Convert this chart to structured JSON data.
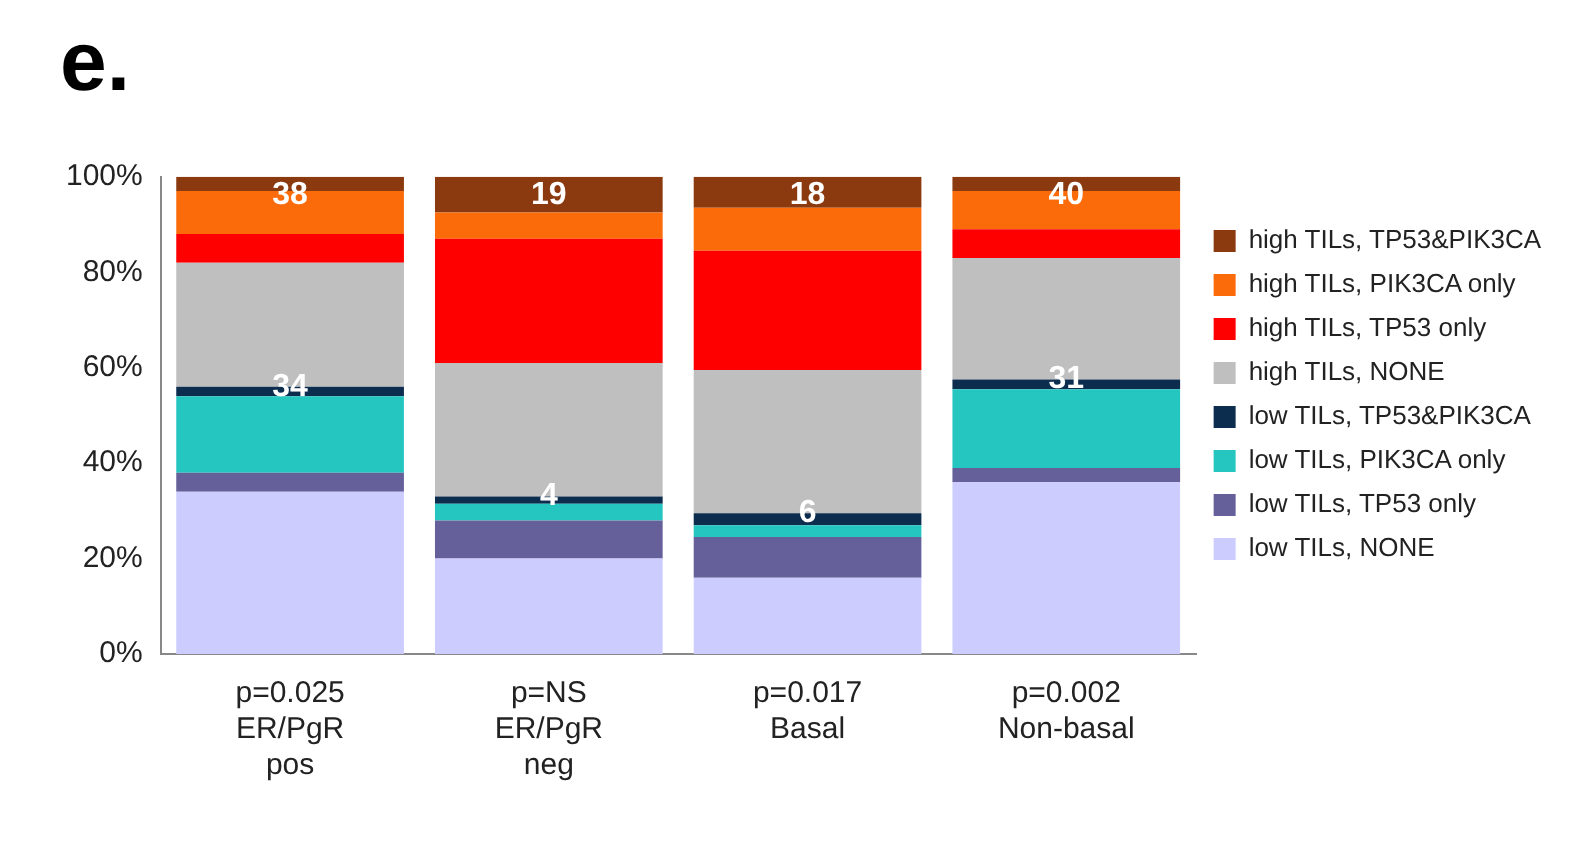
{
  "chart_data": {
    "type": "bar",
    "title": "e.",
    "stacked": true,
    "legend": "right",
    "grid": false,
    "categories": [
      "p=0.025\nER/PgR\npos",
      "p=NS\nER/PgR\nneg",
      "p=0.017\nBasal",
      "p=0.002\nNon-basal"
    ],
    "ylim": [
      0,
      100
    ],
    "yticks": [
      {
        "value": 0,
        "label": "0%"
      },
      {
        "value": 20,
        "label": "20%"
      },
      {
        "value": 40,
        "label": "40%"
      },
      {
        "value": 60,
        "label": "60%"
      },
      {
        "value": 80,
        "label": "80%"
      },
      {
        "value": 100,
        "label": "100%"
      }
    ],
    "series": [
      {
        "name": "low TILs, NONE",
        "color": "#ccccff",
        "values": [
          34,
          20,
          16,
          36
        ]
      },
      {
        "name": "low TILs, TP53 only",
        "color": "#66609a",
        "values": [
          4,
          8,
          8.5,
          3
        ]
      },
      {
        "name": "low TILs, PIK3CA only",
        "color": "#26c6c0",
        "values": [
          16,
          3.5,
          2.5,
          16.5
        ]
      },
      {
        "name": "low TILs, TP53&PIK3CA",
        "color": "#0d2d4f",
        "values": [
          2,
          1.5,
          2.5,
          2
        ]
      },
      {
        "name": "high TILs, NONE",
        "color": "#bfbfbf",
        "values": [
          26,
          28,
          30,
          25.5
        ]
      },
      {
        "name": "high TILs, TP53 only",
        "color": "#ff0000",
        "values": [
          6,
          26,
          25,
          6
        ]
      },
      {
        "name": "high TILs, PIK3CA only",
        "color": "#fb6b0a",
        "values": [
          9,
          5.5,
          9,
          8
        ]
      },
      {
        "name": "high TILs, TP53&PIK3CA",
        "color": "#8b3a0f",
        "values": [
          3,
          7.5,
          6.5,
          3
        ]
      }
    ],
    "annotations": [
      {
        "text": "38",
        "x": "p=0.025\nER/PgR\npos",
        "y": 100
      },
      {
        "text": "34",
        "x": "p=0.025\nER/PgR\npos",
        "y": 56
      },
      {
        "text": "19",
        "x": "p=NS\nER/PgR\nneg",
        "y": 100
      },
      {
        "text": "4",
        "x": "p=NS\nER/PgR\nneg",
        "y": 33
      },
      {
        "text": "18",
        "x": "p=0.017\nBasal",
        "y": 100
      },
      {
        "text": "6",
        "x": "p=0.017\nBasal",
        "y": 29.5
      },
      {
        "text": "40",
        "x": "p=0.002\nNon-basal",
        "y": 100
      },
      {
        "text": "31",
        "x": "p=0.002\nNon-basal",
        "y": 57.5
      }
    ]
  }
}
